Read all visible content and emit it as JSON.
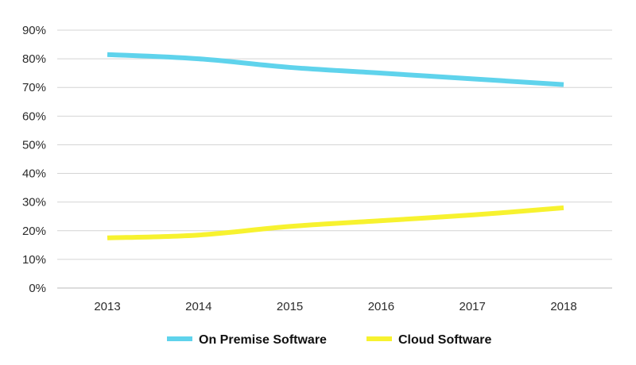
{
  "chart_data": {
    "type": "line",
    "title": "",
    "xlabel": "",
    "ylabel": "",
    "categories": [
      "2013",
      "2014",
      "2015",
      "2016",
      "2017",
      "2018"
    ],
    "ylim": [
      0,
      90
    ],
    "yticks": [
      "0%",
      "10%",
      "20%",
      "30%",
      "40%",
      "50%",
      "60%",
      "70%",
      "80%",
      "90%"
    ],
    "grid": true,
    "legend_position": "bottom-center",
    "series": [
      {
        "name": "On Premise Software",
        "color": "#5fd3ec",
        "values": [
          81.5,
          80,
          77,
          75,
          73,
          71
        ]
      },
      {
        "name": "Cloud Software",
        "color": "#f7f22f",
        "values": [
          17.5,
          18.5,
          21.5,
          23.5,
          25.5,
          28
        ]
      }
    ]
  }
}
